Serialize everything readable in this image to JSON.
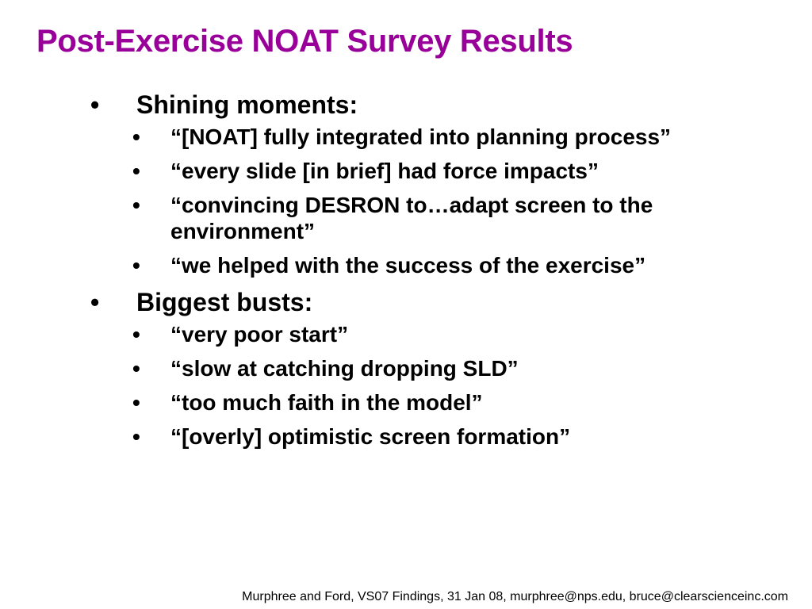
{
  "slide": {
    "title": "Post-Exercise NOAT Survey Results",
    "bullet_glyph": "•",
    "sections": [
      {
        "heading": "Shining moments:",
        "items": [
          "“[NOAT] fully integrated into planning process”",
          "“every slide [in brief] had force impacts”",
          "“convincing DESRON to…adapt screen to the environment”",
          "“we helped with the success of the exercise”"
        ]
      },
      {
        "heading": "Biggest busts:",
        "items": [
          "“very poor start”",
          "“slow at catching dropping SLD”",
          "“too much faith in the model”",
          "“[overly] optimistic screen formation”"
        ]
      }
    ],
    "footer": "Murphree and Ford, VS07 Findings, 31 Jan 08, murphree@nps.edu, bruce@clearscienceinc.com"
  },
  "colors": {
    "title": "#990099",
    "text": "#000000",
    "background": "#ffffff"
  }
}
